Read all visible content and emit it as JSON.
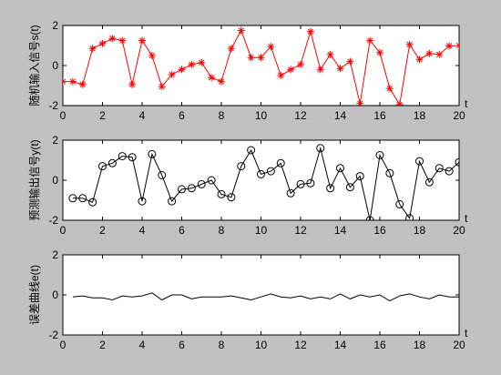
{
  "figure": {
    "background": "#c0c0c0",
    "axes_background": "#ffffff"
  },
  "chart_data": [
    {
      "type": "line",
      "xlabel": "t",
      "ylabel": "随机输入信号s(t)",
      "xlim": [
        0,
        20
      ],
      "ylim": [
        -2,
        2
      ],
      "xticks": [
        0,
        2,
        4,
        6,
        8,
        10,
        12,
        14,
        16,
        18,
        20
      ],
      "yticks": [
        -2,
        0,
        2
      ],
      "grid": false,
      "series": [
        {
          "color": "#ff0000",
          "marker": "star",
          "x": [
            0,
            0.5,
            1,
            1.5,
            2,
            2.5,
            3,
            3.5,
            4,
            4.5,
            5,
            5.5,
            6,
            6.5,
            7,
            7.5,
            8,
            8.5,
            9,
            9.5,
            10,
            10.5,
            11,
            11.5,
            12,
            12.5,
            13,
            13.5,
            14,
            14.5,
            15,
            15.5,
            16,
            16.5,
            17,
            17.5,
            18,
            18.5,
            19,
            19.5,
            20
          ],
          "y": [
            -0.8,
            -0.8,
            -0.95,
            0.85,
            1.1,
            1.35,
            1.25,
            -0.95,
            1.25,
            0.5,
            -1.05,
            -0.45,
            -0.2,
            0.05,
            0.15,
            -0.6,
            -0.8,
            0.85,
            1.75,
            0.4,
            0.4,
            0.95,
            -0.5,
            -0.2,
            0.05,
            1.7,
            -0.2,
            0.55,
            -0.15,
            0.2,
            -1.9,
            1.25,
            0.65,
            -1.15,
            -1.95,
            1.05,
            0.3,
            0.6,
            0.55,
            0.98,
            1.0
          ]
        }
      ]
    },
    {
      "type": "line",
      "xlabel": "t",
      "ylabel": "预测输出信号y(t)",
      "xlim": [
        0,
        20
      ],
      "ylim": [
        -2,
        2
      ],
      "xticks": [
        0,
        2,
        4,
        6,
        8,
        10,
        12,
        14,
        16,
        18,
        20
      ],
      "yticks": [
        -2,
        0,
        2
      ],
      "grid": false,
      "series": [
        {
          "color": "#000000",
          "marker": "circle",
          "x": [
            0.5,
            1,
            1.5,
            2,
            2.5,
            3,
            3.5,
            4,
            4.5,
            5,
            5.5,
            6,
            6.5,
            7,
            7.5,
            8,
            8.5,
            9,
            9.5,
            10,
            10.5,
            11,
            11.5,
            12,
            12.5,
            13,
            13.5,
            14,
            14.5,
            15,
            15.5,
            16,
            16.5,
            17,
            17.5,
            18,
            18.5,
            19,
            19.5,
            20
          ],
          "y": [
            -0.9,
            -0.9,
            -1.1,
            0.7,
            0.85,
            1.2,
            1.15,
            -1.05,
            1.3,
            0.25,
            -1.05,
            -0.45,
            -0.4,
            -0.2,
            0.0,
            -0.7,
            -0.85,
            0.7,
            1.5,
            0.3,
            0.45,
            0.85,
            -0.65,
            -0.2,
            -0.15,
            1.6,
            -0.4,
            0.6,
            -0.35,
            0.2,
            -2.0,
            1.25,
            0.35,
            -1.2,
            -1.9,
            0.95,
            -0.1,
            0.6,
            0.45,
            0.9
          ]
        }
      ]
    },
    {
      "type": "line",
      "xlabel": "t",
      "ylabel": "误差曲线e(t)",
      "xlim": [
        0,
        20
      ],
      "ylim": [
        -2,
        2
      ],
      "xticks": [
        0,
        2,
        4,
        6,
        8,
        10,
        12,
        14,
        16,
        18,
        20
      ],
      "yticks": [
        -2,
        0,
        2
      ],
      "grid": false,
      "series": [
        {
          "color": "#000000",
          "marker": "none",
          "x": [
            0.5,
            1,
            1.5,
            2,
            2.5,
            3,
            3.5,
            4,
            4.5,
            5,
            5.5,
            6,
            6.5,
            7,
            7.5,
            8,
            8.5,
            9,
            9.5,
            10,
            10.5,
            11,
            11.5,
            12,
            12.5,
            13,
            13.5,
            14,
            14.5,
            15,
            15.5,
            16,
            16.5,
            17,
            17.5,
            18,
            18.5,
            19,
            19.5,
            20
          ],
          "y": [
            -0.1,
            -0.05,
            -0.15,
            -0.15,
            -0.25,
            -0.05,
            -0.1,
            -0.05,
            0.1,
            -0.25,
            0.0,
            0.0,
            -0.2,
            -0.1,
            -0.1,
            -0.1,
            -0.05,
            -0.15,
            -0.25,
            -0.1,
            0.05,
            -0.1,
            -0.15,
            -0.05,
            -0.2,
            -0.1,
            -0.2,
            0.05,
            -0.2,
            0.0,
            -0.1,
            0.0,
            -0.3,
            -0.05,
            0.05,
            -0.1,
            -0.2,
            0.0,
            -0.1,
            -0.1
          ]
        }
      ]
    }
  ]
}
